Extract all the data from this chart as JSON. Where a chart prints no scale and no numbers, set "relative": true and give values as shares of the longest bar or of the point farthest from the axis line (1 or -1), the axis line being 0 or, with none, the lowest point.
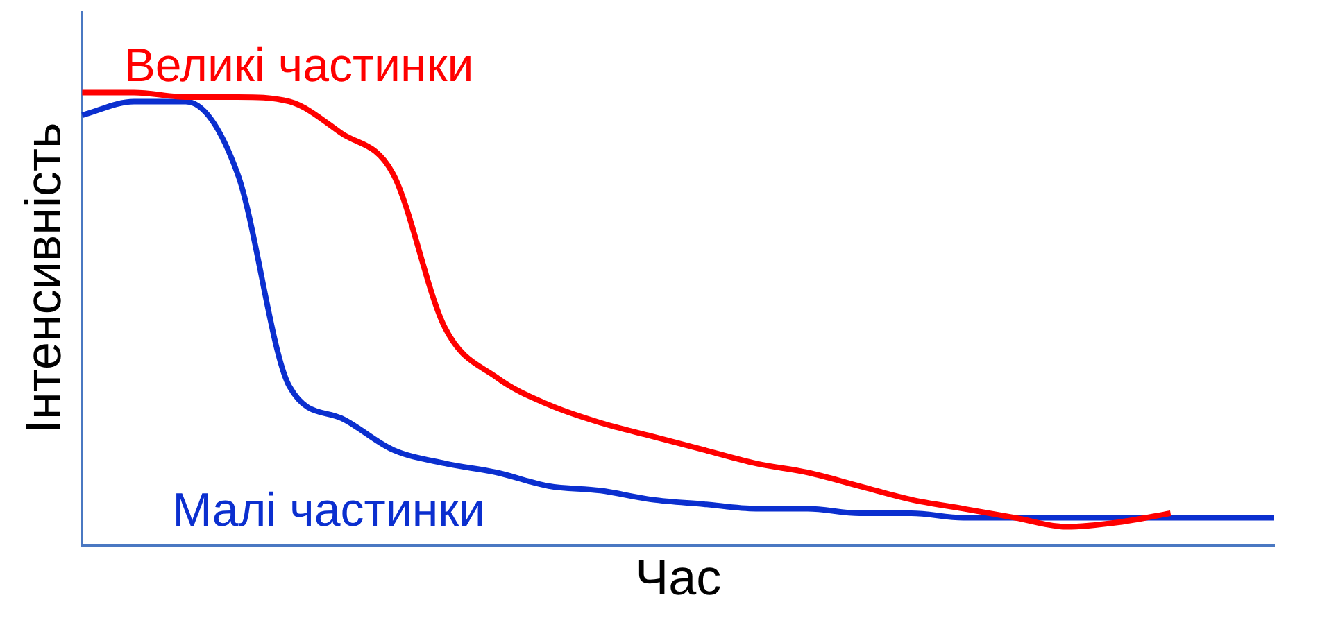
{
  "chart_data": {
    "type": "line",
    "relative": true,
    "xlabel": "Час",
    "ylabel": "Інтенсивність",
    "legend": false,
    "grid": false,
    "marker": "none",
    "categories": [
      null,
      null,
      null,
      null,
      null,
      null,
      null,
      null,
      null,
      null,
      null,
      null,
      null,
      null,
      null,
      null,
      null,
      null,
      null,
      null,
      null,
      null,
      null,
      null
    ],
    "series": [
      {
        "name": "Великі частинки",
        "color": "#ff0000",
        "values": [
          1.0,
          1.0,
          0.99,
          0.99,
          0.98,
          0.91,
          0.82,
          0.48,
          0.37,
          0.31,
          0.27,
          0.24,
          0.21,
          0.18,
          0.16,
          0.13,
          0.1,
          0.08,
          0.06,
          0.04,
          0.05,
          0.07,
          null,
          null
        ]
      },
      {
        "name": "Малі частинки",
        "color": "#0b2fcf",
        "values": [
          0.95,
          0.98,
          0.98,
          0.82,
          0.35,
          0.28,
          0.21,
          0.18,
          0.16,
          0.13,
          0.12,
          0.1,
          0.09,
          0.08,
          0.08,
          0.07,
          0.07,
          0.06,
          0.06,
          0.06,
          0.06,
          0.06,
          0.06,
          0.06
        ]
      }
    ]
  }
}
